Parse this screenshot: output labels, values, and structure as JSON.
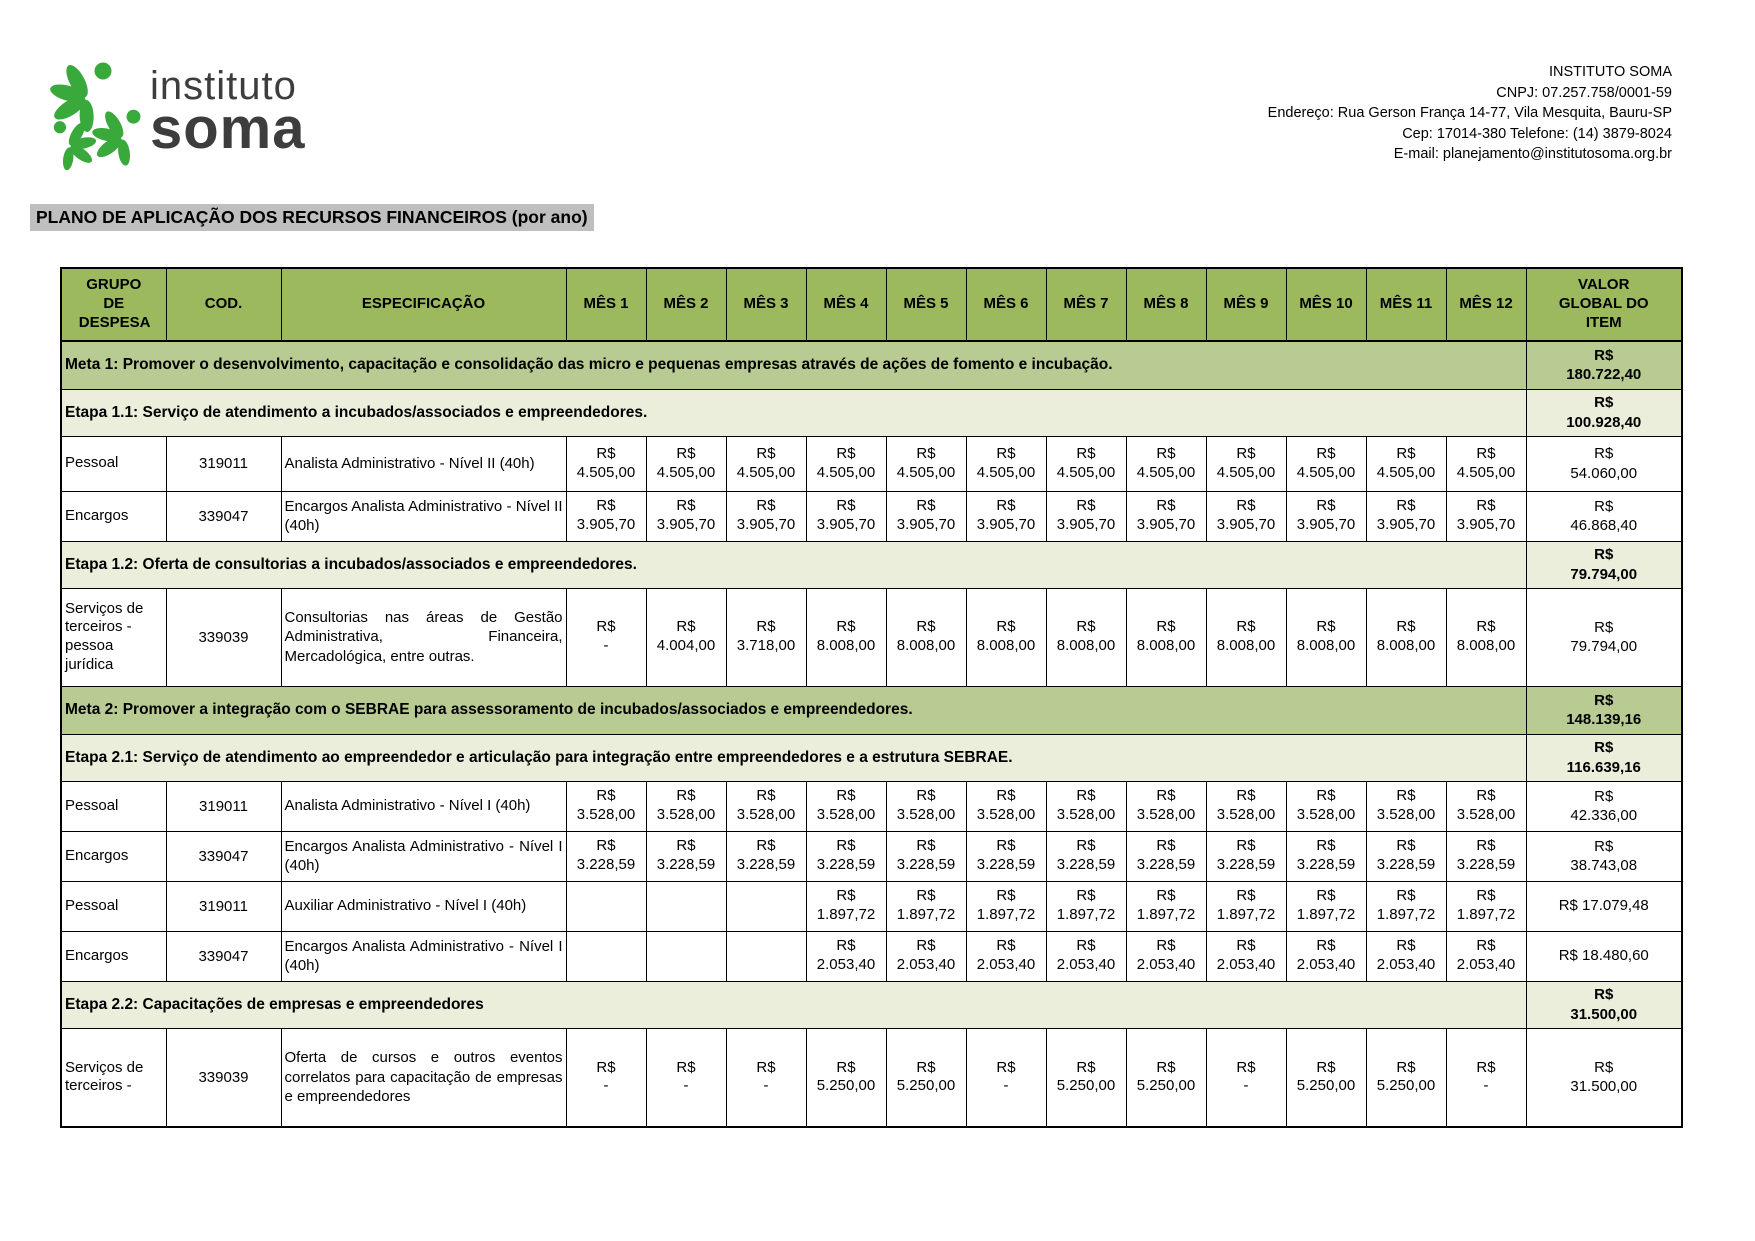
{
  "logo": {
    "line1": "instituto",
    "line2": "soma"
  },
  "org": {
    "name": "INSTITUTO SOMA",
    "cnpj": "CNPJ: 07.257.758/0001-59",
    "address": "Endereço: Rua Gerson França 14-77, Vila Mesquita, Bauru-SP",
    "cep_phone": "Cep: 17014-380 Telefone: (14) 3879-8024",
    "email": "E-mail: planejamento@institutosoma.org.br"
  },
  "title": "PLANO DE APLICAÇÃO DOS RECURSOS FINANCEIROS (por ano)",
  "currency": "R$",
  "colors": {
    "header_green": "#9cba5d",
    "meta_green": "#b7cb92",
    "etapa_green": "#eaeeda",
    "title_bg": "#bfbfbf",
    "logo_green": "#3aa93c"
  },
  "table": {
    "columns": [
      "GRUPO DE DESPESA",
      "COD.",
      "ESPECIFICAÇÃO",
      "MÊS 1",
      "MÊS 2",
      "MÊS 3",
      "MÊS 4",
      "MÊS 5",
      "MÊS 6",
      "MÊS 7",
      "MÊS 8",
      "MÊS 9",
      "MÊS 10",
      "MÊS 11",
      "MÊS 12",
      "VALOR GLOBAL DO ITEM"
    ],
    "rows": [
      {
        "type": "meta",
        "label": "Meta 1: Promover o desenvolvimento, capacitação e consolidação das micro e pequenas empresas através de ações de fomento e incubação.",
        "total": "180.722,40"
      },
      {
        "type": "etapa",
        "label": "Etapa 1.1: Serviço de atendimento a incubados/associados e empreendedores.",
        "total": "100.928,40"
      },
      {
        "type": "item",
        "group": "Pessoal",
        "cod": "319011",
        "spec": "Analista Administrativo - Nível II (40h)",
        "months": [
          "4.505,00",
          "4.505,00",
          "4.505,00",
          "4.505,00",
          "4.505,00",
          "4.505,00",
          "4.505,00",
          "4.505,00",
          "4.505,00",
          "4.505,00",
          "4.505,00",
          "4.505,00"
        ],
        "total": "54.060,00",
        "h": "r55"
      },
      {
        "type": "item",
        "group": "Encargos",
        "cod": "339047",
        "spec": "Encargos Analista Administrativo - Nível II (40h)",
        "months": [
          "3.905,70",
          "3.905,70",
          "3.905,70",
          "3.905,70",
          "3.905,70",
          "3.905,70",
          "3.905,70",
          "3.905,70",
          "3.905,70",
          "3.905,70",
          "3.905,70",
          "3.905,70"
        ],
        "total": "46.868,40",
        "h": "r50"
      },
      {
        "type": "etapa",
        "label": "Etapa 1.2: Oferta de consultorias a incubados/associados e empreendedores.",
        "total": "79.794,00"
      },
      {
        "type": "item",
        "group": "Serviços de terceiros - pessoa jurídica",
        "cod": "339039",
        "spec": "Consultorias nas áreas de Gestão Administrativa, Financeira, Mercadológica, entre outras.",
        "months": [
          "-",
          "4.004,00",
          "3.718,00",
          "8.008,00",
          "8.008,00",
          "8.008,00",
          "8.008,00",
          "8.008,00",
          "8.008,00",
          "8.008,00",
          "8.008,00",
          "8.008,00"
        ],
        "total": "79.794,00",
        "h": "r98"
      },
      {
        "type": "meta",
        "label": "Meta 2: Promover a integração com o SEBRAE para assessoramento de incubados/associados e empreendedores.",
        "total": "148.139,16"
      },
      {
        "type": "etapa",
        "label": "Etapa 2.1: Serviço de atendimento ao empreendedor e articulação para integração entre empreendedores e a estrutura SEBRAE.",
        "total": "116.639,16"
      },
      {
        "type": "item",
        "group": "Pessoal",
        "cod": "319011",
        "spec": "Analista Administrativo - Nível I (40h)",
        "months": [
          "3.528,00",
          "3.528,00",
          "3.528,00",
          "3.528,00",
          "3.528,00",
          "3.528,00",
          "3.528,00",
          "3.528,00",
          "3.528,00",
          "3.528,00",
          "3.528,00",
          "3.528,00"
        ],
        "total": "42.336,00",
        "h": "r50"
      },
      {
        "type": "item",
        "group": "Encargos",
        "cod": "339047",
        "spec": "Encargos Analista Administrativo - Nível I (40h)",
        "months": [
          "3.228,59",
          "3.228,59",
          "3.228,59",
          "3.228,59",
          "3.228,59",
          "3.228,59",
          "3.228,59",
          "3.228,59",
          "3.228,59",
          "3.228,59",
          "3.228,59",
          "3.228,59"
        ],
        "total": "38.743,08",
        "h": "r50"
      },
      {
        "type": "item",
        "group": "Pessoal",
        "cod": "319011",
        "spec": "Auxiliar Administrativo - Nível I (40h)",
        "months": [
          "",
          "",
          "",
          "1.897,72",
          "1.897,72",
          "1.897,72",
          "1.897,72",
          "1.897,72",
          "1.897,72",
          "1.897,72",
          "1.897,72",
          "1.897,72"
        ],
        "total": "17.079,48",
        "total_inline": true,
        "h": "r50"
      },
      {
        "type": "item",
        "group": "Encargos",
        "cod": "339047",
        "spec": "Encargos Analista Administrativo - Nível I (40h)",
        "months": [
          "",
          "",
          "",
          "2.053,40",
          "2.053,40",
          "2.053,40",
          "2.053,40",
          "2.053,40",
          "2.053,40",
          "2.053,40",
          "2.053,40",
          "2.053,40"
        ],
        "total": "18.480,60",
        "total_inline": true,
        "h": "r50"
      },
      {
        "type": "etapa",
        "label": "Etapa 2.2: Capacitações de empresas e empreendedores",
        "total": "31.500,00"
      },
      {
        "type": "item",
        "group": "Serviços de terceiros -",
        "cod": "339039",
        "spec": "Oferta de cursos e outros eventos correlatos para capacitação de empresas e empreendedores",
        "months": [
          "-",
          "-",
          "-",
          "5.250,00",
          "5.250,00",
          "-",
          "5.250,00",
          "5.250,00",
          "-",
          "5.250,00",
          "5.250,00",
          "-"
        ],
        "total": "31.500,00",
        "h": "r99"
      }
    ]
  }
}
